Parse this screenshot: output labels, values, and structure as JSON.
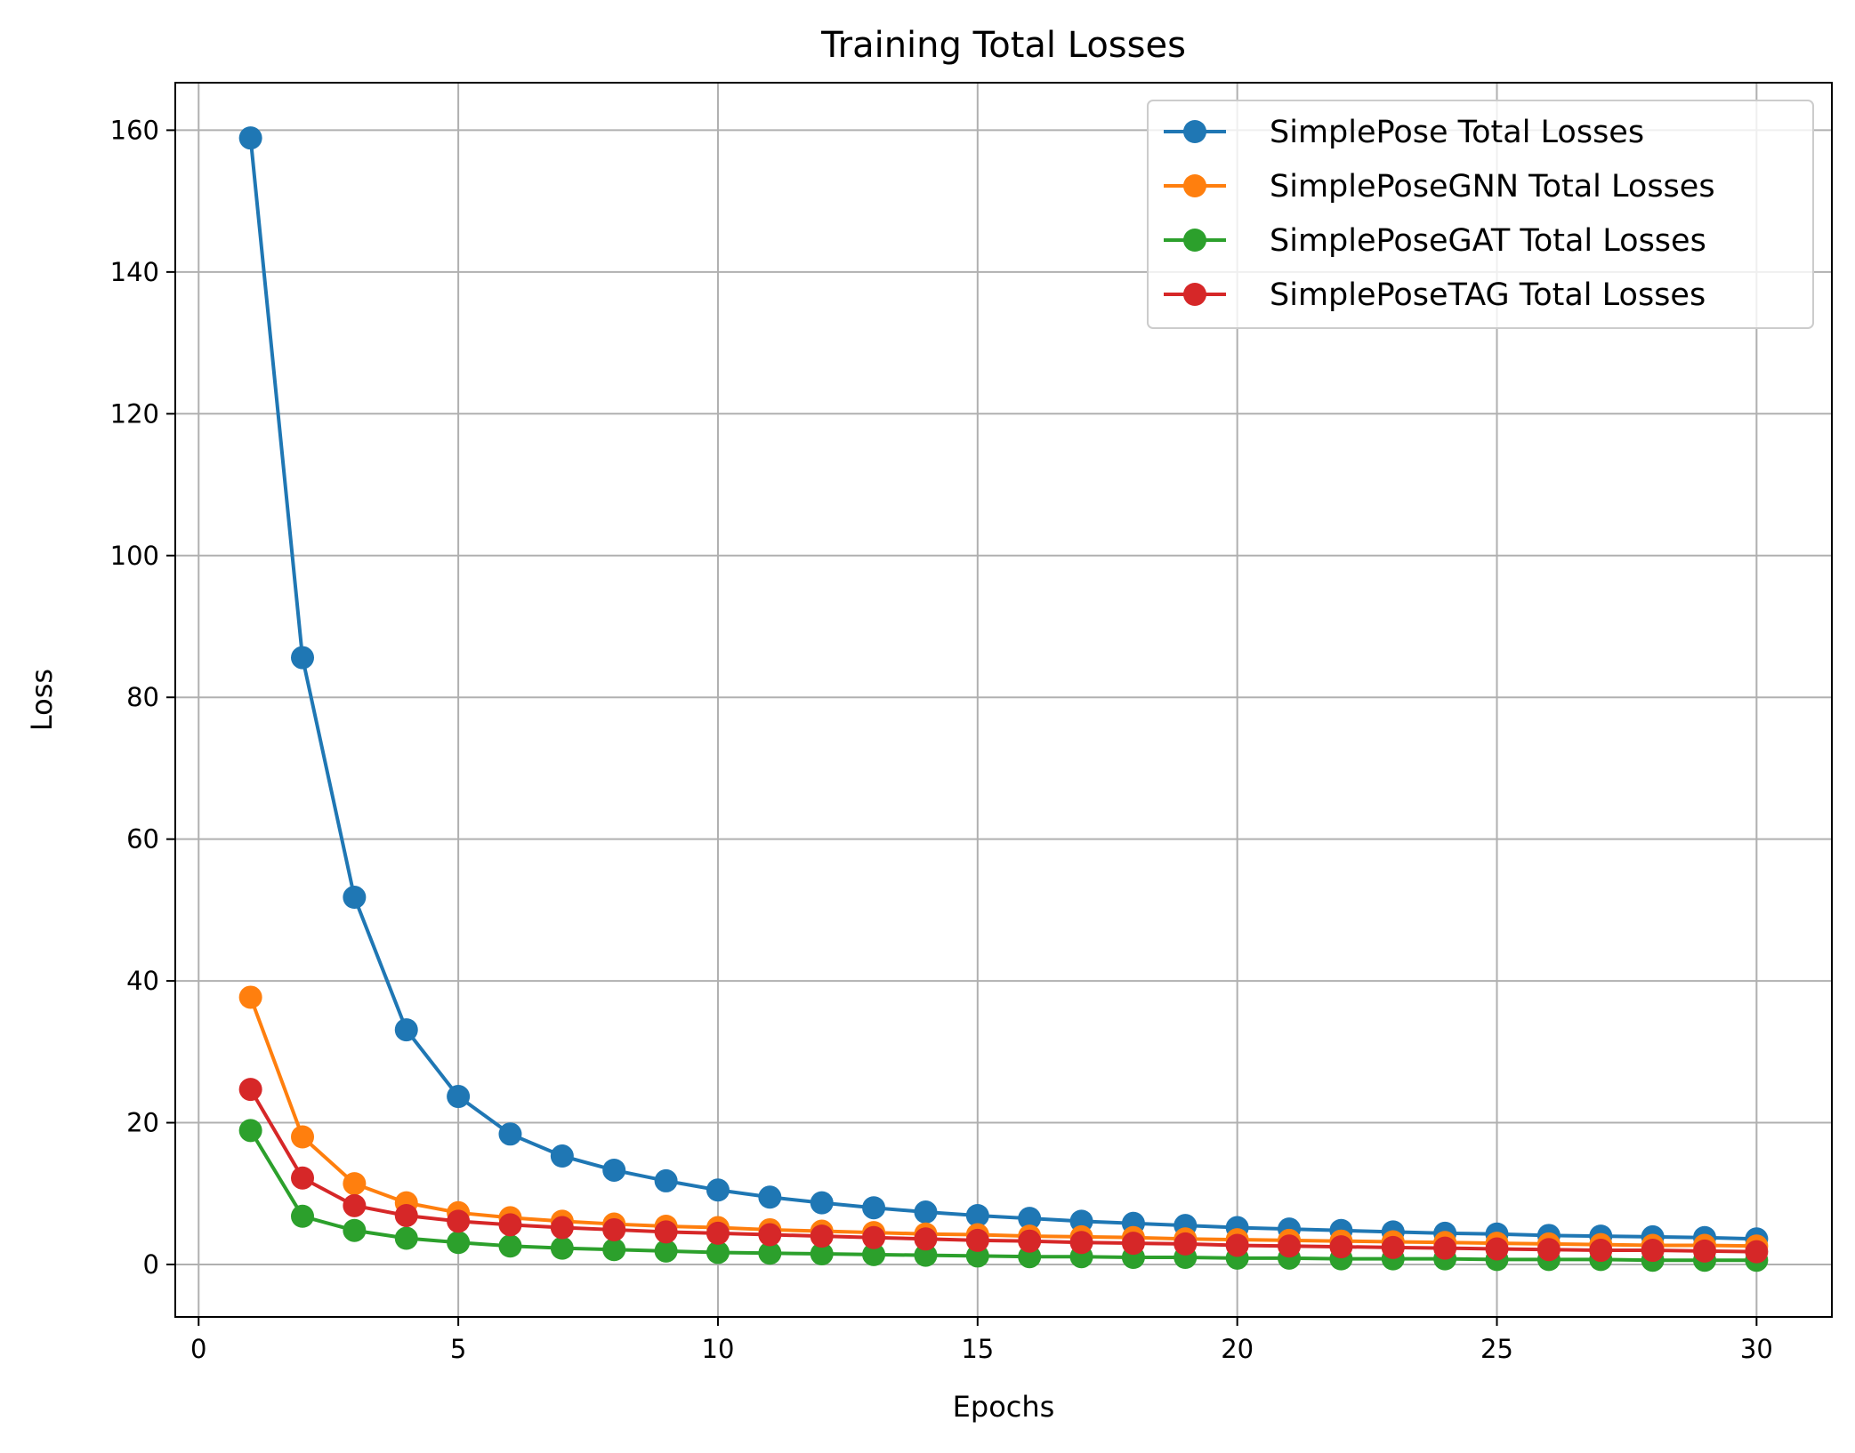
{
  "chart_data": {
    "type": "line",
    "title": "Training Total Losses",
    "xlabel": "Epochs",
    "ylabel": "Loss",
    "xlim": [
      -0.45,
      31.45
    ],
    "ylim": [
      -7.4,
      166.7
    ],
    "xticks": [
      0,
      5,
      10,
      15,
      20,
      25,
      30
    ],
    "yticks": [
      0,
      20,
      40,
      60,
      80,
      100,
      120,
      140,
      160
    ],
    "grid": true,
    "legend_position": "top-right",
    "x": [
      1,
      2,
      3,
      4,
      5,
      6,
      7,
      8,
      9,
      10,
      11,
      12,
      13,
      14,
      15,
      16,
      17,
      18,
      19,
      20,
      21,
      22,
      23,
      24,
      25,
      26,
      27,
      28,
      29,
      30
    ],
    "series": [
      {
        "name": "SimplePose Total Losses",
        "color": "#1f77b4",
        "values": [
          158.9,
          85.6,
          51.8,
          33.1,
          23.7,
          18.4,
          15.3,
          13.3,
          11.8,
          10.5,
          9.5,
          8.7,
          8.0,
          7.4,
          6.9,
          6.5,
          6.1,
          5.8,
          5.5,
          5.2,
          5.0,
          4.8,
          4.6,
          4.4,
          4.3,
          4.1,
          4.0,
          3.9,
          3.8,
          3.6
        ]
      },
      {
        "name": "SimplePoseGNN Total Losses",
        "color": "#ff7f0e",
        "values": [
          37.7,
          18.0,
          11.4,
          8.7,
          7.3,
          6.6,
          6.1,
          5.7,
          5.4,
          5.2,
          4.9,
          4.7,
          4.5,
          4.3,
          4.2,
          4.0,
          3.9,
          3.8,
          3.6,
          3.5,
          3.4,
          3.3,
          3.2,
          3.1,
          3.0,
          2.9,
          2.8,
          2.7,
          2.7,
          2.6
        ]
      },
      {
        "name": "SimplePoseGAT Total Losses",
        "color": "#2ca02c",
        "values": [
          18.9,
          6.8,
          4.8,
          3.7,
          3.1,
          2.6,
          2.3,
          2.1,
          1.9,
          1.7,
          1.6,
          1.5,
          1.4,
          1.3,
          1.2,
          1.1,
          1.1,
          1.0,
          1.0,
          0.9,
          0.9,
          0.8,
          0.8,
          0.8,
          0.7,
          0.7,
          0.7,
          0.6,
          0.6,
          0.6
        ]
      },
      {
        "name": "SimplePoseTAG Total Losses",
        "color": "#d62728",
        "values": [
          24.7,
          12.2,
          8.3,
          6.9,
          6.1,
          5.6,
          5.2,
          4.9,
          4.6,
          4.4,
          4.2,
          4.0,
          3.8,
          3.6,
          3.4,
          3.3,
          3.1,
          3.0,
          2.9,
          2.7,
          2.6,
          2.5,
          2.4,
          2.3,
          2.2,
          2.1,
          2.0,
          2.0,
          1.9,
          1.8
        ]
      }
    ]
  }
}
